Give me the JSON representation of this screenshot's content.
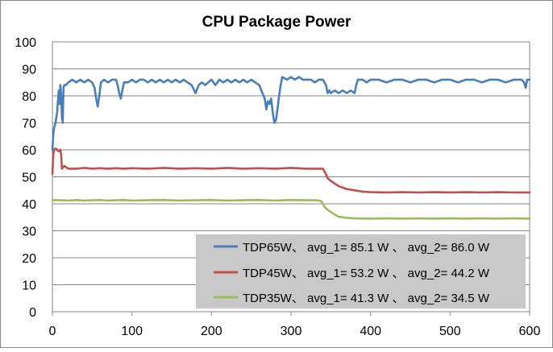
{
  "chart_data": {
    "type": "line",
    "title": "CPU Package Power",
    "xlabel": "",
    "ylabel": "",
    "xlim": [
      0,
      600
    ],
    "ylim": [
      0,
      100
    ],
    "xticks": [
      0,
      100,
      200,
      300,
      400,
      500,
      600
    ],
    "yticks": [
      0,
      10,
      20,
      30,
      40,
      50,
      60,
      70,
      80,
      90,
      100
    ],
    "grid": "horizontal",
    "legend": {
      "placement": "bottom-right",
      "background": "#c8c8c8",
      "entries": [
        "TDP65W、 avg_1= 85.1 W 、 avg_2= 86.0 W",
        "TDP45W、 avg_1= 53.2 W 、 avg_2= 44.2 W",
        "TDP35W、 avg_1= 41.3 W 、 avg_2= 34.5 W"
      ]
    },
    "series": [
      {
        "color": "#4a7ebb",
        "points": [
          [
            0,
            60
          ],
          [
            1,
            65
          ],
          [
            2,
            68
          ],
          [
            4,
            70
          ],
          [
            6,
            74
          ],
          [
            7,
            78
          ],
          [
            8,
            82
          ],
          [
            9,
            77
          ],
          [
            10,
            84
          ],
          [
            11,
            80
          ],
          [
            12,
            72
          ],
          [
            13,
            70
          ],
          [
            14,
            83
          ],
          [
            15,
            84
          ],
          [
            17,
            84
          ],
          [
            20,
            85
          ],
          [
            25,
            86
          ],
          [
            30,
            85
          ],
          [
            35,
            86
          ],
          [
            40,
            85
          ],
          [
            45,
            86
          ],
          [
            50,
            85
          ],
          [
            53,
            83
          ],
          [
            55,
            79
          ],
          [
            57,
            76
          ],
          [
            59,
            80
          ],
          [
            61,
            85
          ],
          [
            65,
            86
          ],
          [
            70,
            85
          ],
          [
            75,
            86
          ],
          [
            80,
            86
          ],
          [
            82,
            84
          ],
          [
            84,
            81
          ],
          [
            86,
            79
          ],
          [
            88,
            82
          ],
          [
            90,
            85
          ],
          [
            95,
            85
          ],
          [
            100,
            86
          ],
          [
            105,
            85
          ],
          [
            110,
            86
          ],
          [
            115,
            86
          ],
          [
            120,
            85
          ],
          [
            125,
            86
          ],
          [
            130,
            85
          ],
          [
            135,
            86
          ],
          [
            140,
            85
          ],
          [
            145,
            86
          ],
          [
            150,
            85
          ],
          [
            155,
            86
          ],
          [
            160,
            85
          ],
          [
            165,
            86
          ],
          [
            170,
            85
          ],
          [
            175,
            84
          ],
          [
            180,
            81
          ],
          [
            184,
            84
          ],
          [
            188,
            85
          ],
          [
            192,
            84
          ],
          [
            196,
            85
          ],
          [
            200,
            86
          ],
          [
            205,
            84
          ],
          [
            210,
            86
          ],
          [
            215,
            85
          ],
          [
            220,
            86
          ],
          [
            225,
            85
          ],
          [
            230,
            86
          ],
          [
            235,
            85
          ],
          [
            240,
            86
          ],
          [
            245,
            85
          ],
          [
            250,
            86
          ],
          [
            255,
            85
          ],
          [
            260,
            84
          ],
          [
            264,
            81
          ],
          [
            267,
            79
          ],
          [
            269,
            75
          ],
          [
            271,
            78
          ],
          [
            273,
            77
          ],
          [
            275,
            79
          ],
          [
            277,
            74
          ],
          [
            279,
            70
          ],
          [
            281,
            71
          ],
          [
            283,
            75
          ],
          [
            285,
            80
          ],
          [
            287,
            84
          ],
          [
            289,
            87
          ],
          [
            295,
            86
          ],
          [
            300,
            87
          ],
          [
            305,
            86
          ],
          [
            310,
            87
          ],
          [
            315,
            86
          ],
          [
            320,
            86
          ],
          [
            325,
            86
          ],
          [
            330,
            85
          ],
          [
            335,
            86
          ],
          [
            340,
            86
          ],
          [
            342,
            85
          ],
          [
            344,
            84
          ],
          [
            346,
            81
          ],
          [
            348,
            82
          ],
          [
            350,
            81
          ],
          [
            355,
            82
          ],
          [
            360,
            81
          ],
          [
            365,
            82
          ],
          [
            370,
            81
          ],
          [
            375,
            82
          ],
          [
            380,
            81
          ],
          [
            382,
            84
          ],
          [
            384,
            86
          ],
          [
            390,
            86
          ],
          [
            395,
            85
          ],
          [
            400,
            86
          ],
          [
            410,
            86
          ],
          [
            420,
            85
          ],
          [
            430,
            86
          ],
          [
            440,
            86
          ],
          [
            450,
            85
          ],
          [
            460,
            86
          ],
          [
            470,
            86
          ],
          [
            480,
            85
          ],
          [
            490,
            86
          ],
          [
            500,
            86
          ],
          [
            510,
            85
          ],
          [
            520,
            86
          ],
          [
            530,
            86
          ],
          [
            540,
            85
          ],
          [
            550,
            86
          ],
          [
            560,
            86
          ],
          [
            570,
            85
          ],
          [
            580,
            86
          ],
          [
            590,
            86
          ],
          [
            593,
            85
          ],
          [
            595,
            83
          ],
          [
            597,
            86
          ],
          [
            600,
            86
          ]
        ]
      },
      {
        "color": "#c0504d",
        "points": [
          [
            0,
            51
          ],
          [
            1,
            58
          ],
          [
            2,
            60
          ],
          [
            4,
            60.5
          ],
          [
            6,
            60
          ],
          [
            8,
            59.5
          ],
          [
            10,
            60
          ],
          [
            11,
            58
          ],
          [
            12,
            53
          ],
          [
            15,
            54
          ],
          [
            20,
            53
          ],
          [
            30,
            53
          ],
          [
            40,
            53.3
          ],
          [
            50,
            53
          ],
          [
            60,
            53.2
          ],
          [
            70,
            53
          ],
          [
            80,
            53.2
          ],
          [
            90,
            53
          ],
          [
            100,
            53.2
          ],
          [
            120,
            53
          ],
          [
            140,
            53.3
          ],
          [
            160,
            53
          ],
          [
            180,
            53.2
          ],
          [
            200,
            53
          ],
          [
            220,
            53.3
          ],
          [
            240,
            53
          ],
          [
            260,
            53.2
          ],
          [
            280,
            53
          ],
          [
            300,
            53.3
          ],
          [
            320,
            53
          ],
          [
            340,
            53
          ],
          [
            342,
            52
          ],
          [
            344,
            51
          ],
          [
            346,
            49.5
          ],
          [
            350,
            48.5
          ],
          [
            355,
            47.5
          ],
          [
            360,
            46.5
          ],
          [
            365,
            46
          ],
          [
            370,
            45.5
          ],
          [
            380,
            45
          ],
          [
            390,
            44.5
          ],
          [
            400,
            44.3
          ],
          [
            420,
            44.2
          ],
          [
            440,
            44.3
          ],
          [
            460,
            44.2
          ],
          [
            480,
            44.3
          ],
          [
            500,
            44.2
          ],
          [
            520,
            44.3
          ],
          [
            540,
            44.2
          ],
          [
            560,
            44.3
          ],
          [
            580,
            44.2
          ],
          [
            600,
            44.2
          ]
        ]
      },
      {
        "color": "#9bbb59",
        "points": [
          [
            0,
            41.3
          ],
          [
            10,
            41.3
          ],
          [
            20,
            41.2
          ],
          [
            30,
            41.4
          ],
          [
            40,
            41.2
          ],
          [
            50,
            41.3
          ],
          [
            60,
            41.4
          ],
          [
            70,
            41.2
          ],
          [
            80,
            41.3
          ],
          [
            90,
            41.4
          ],
          [
            100,
            41.2
          ],
          [
            120,
            41.3
          ],
          [
            140,
            41.4
          ],
          [
            160,
            41.2
          ],
          [
            180,
            41.3
          ],
          [
            200,
            41.4
          ],
          [
            220,
            41.2
          ],
          [
            240,
            41.3
          ],
          [
            260,
            41.4
          ],
          [
            280,
            41.2
          ],
          [
            300,
            41.4
          ],
          [
            320,
            41.3
          ],
          [
            330,
            41.3
          ],
          [
            335,
            41.2
          ],
          [
            338,
            41
          ],
          [
            340,
            40
          ],
          [
            342,
            39
          ],
          [
            345,
            38
          ],
          [
            350,
            37
          ],
          [
            355,
            36
          ],
          [
            360,
            35.2
          ],
          [
            370,
            34.8
          ],
          [
            380,
            34.6
          ],
          [
            400,
            34.5
          ],
          [
            420,
            34.6
          ],
          [
            440,
            34.5
          ],
          [
            460,
            34.6
          ],
          [
            480,
            34.5
          ],
          [
            500,
            34.6
          ],
          [
            520,
            34.5
          ],
          [
            540,
            34.6
          ],
          [
            560,
            34.5
          ],
          [
            580,
            34.6
          ],
          [
            600,
            34.5
          ]
        ]
      }
    ]
  }
}
